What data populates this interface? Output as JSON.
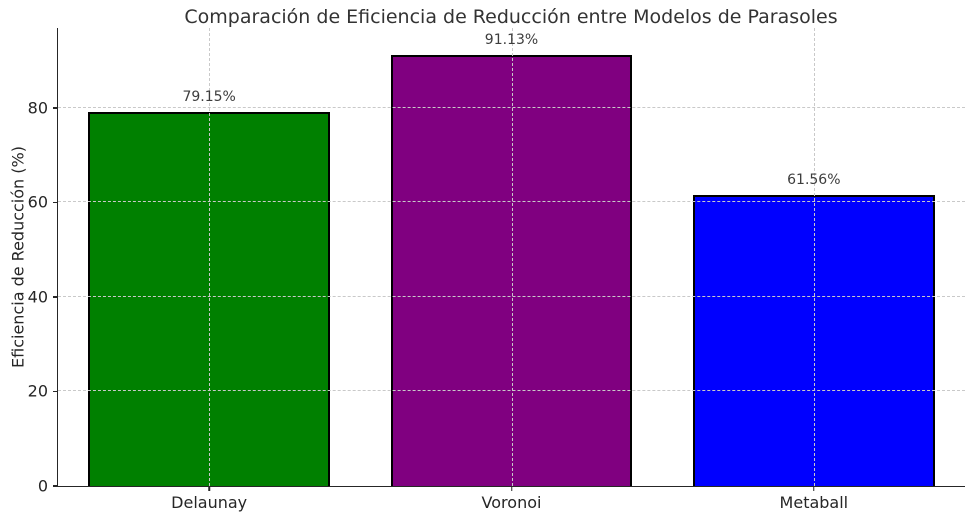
{
  "chart_data": {
    "type": "bar",
    "title": "Comparación de Eficiencia de Reducción entre Modelos de Parasoles",
    "xlabel": "",
    "ylabel": "Eficiencia de Reducción (%)",
    "categories": [
      "Delaunay",
      "Voronoi",
      "Metaball"
    ],
    "values": [
      79.15,
      91.13,
      61.56
    ],
    "value_labels": [
      "79.15%",
      "91.13%",
      "61.56%"
    ],
    "bar_colors": [
      "#008000",
      "#800080",
      "#0000ff"
    ],
    "bar_edge_color": "#000000",
    "bar_width_fraction": 0.8,
    "yticks": [
      0,
      20,
      40,
      60,
      80
    ],
    "ylim": [
      0,
      96.9
    ],
    "grid": {
      "visible": true,
      "style": "dashed",
      "color": "#c9c9c9",
      "axes": "both",
      "above_bars": true
    },
    "legend": null,
    "background_color": "#ffffff",
    "text_color": "#262626",
    "title_color": "#333333",
    "spine_color": "#262626"
  }
}
